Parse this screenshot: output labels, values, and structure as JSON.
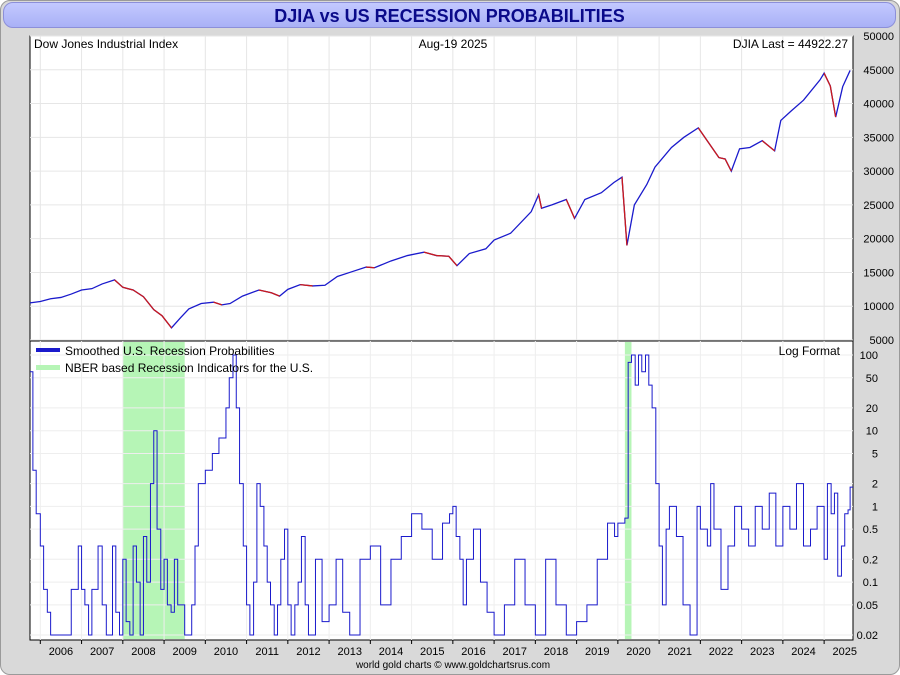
{
  "title": "DJIA vs US RECESSION PROBABILITIES",
  "header": {
    "left": "Dow Jones Industrial Index",
    "center": "Aug-19  2025",
    "right": "DJIA Last = 44922.27"
  },
  "lower_format_label": "Log Format",
  "credit": "world gold charts © www.goldchartsrus.com",
  "colors": {
    "djia_up": "#1a1acc",
    "djia_down": "#cc1a1a",
    "probability_line": "#1a1acc",
    "recession_band": "#b6f5b6",
    "title_text": "#0a0a8a"
  },
  "chart_data": [
    {
      "type": "line",
      "name": "upper-panel",
      "title": "Dow Jones Industrial Index",
      "ylabel": "",
      "ylim": [
        5000,
        50000
      ],
      "yticks": [
        5000,
        10000,
        15000,
        20000,
        25000,
        30000,
        35000,
        40000,
        45000,
        50000
      ],
      "xticks": [
        "2006",
        "2007",
        "2008",
        "2009",
        "2010",
        "2011",
        "2012",
        "2013",
        "2014",
        "2015",
        "2016",
        "2017",
        "2018",
        "2019",
        "2020",
        "2021",
        "2022",
        "2023",
        "2024",
        "2025"
      ],
      "xlim": [
        2005.75,
        2025.7
      ],
      "last_value": 44922.27,
      "series": [
        {
          "name": "",
          "x": [
            2005.75,
            2006.0,
            2006.25,
            2006.5,
            2006.75,
            2007.0,
            2007.25,
            2007.5,
            2007.8,
            2008.0,
            2008.25,
            2008.5,
            2008.75,
            2008.95,
            2009.18,
            2009.4,
            2009.6,
            2009.9,
            2010.2,
            2010.4,
            2010.6,
            2010.9,
            2011.3,
            2011.6,
            2011.8,
            2012.0,
            2012.3,
            2012.6,
            2012.9,
            2013.2,
            2013.5,
            2013.9,
            2014.1,
            2014.5,
            2014.9,
            2015.3,
            2015.6,
            2015.9,
            2016.1,
            2016.4,
            2016.8,
            2017.0,
            2017.4,
            2017.9,
            2018.08,
            2018.15,
            2018.4,
            2018.75,
            2018.95,
            2019.2,
            2019.6,
            2019.9,
            2020.1,
            2020.22,
            2020.4,
            2020.7,
            2020.9,
            2021.3,
            2021.6,
            2021.95,
            2022.2,
            2022.45,
            2022.6,
            2022.75,
            2022.95,
            2023.2,
            2023.5,
            2023.8,
            2023.95,
            2024.2,
            2024.5,
            2024.9,
            2025.0,
            2025.15,
            2025.28,
            2025.45,
            2025.63
          ],
          "values": [
            10500,
            10700,
            11100,
            11300,
            11800,
            12400,
            12600,
            13300,
            13900,
            12800,
            12400,
            11400,
            9500,
            8600,
            6800,
            8300,
            9600,
            10400,
            10600,
            10200,
            10400,
            11500,
            12400,
            12000,
            11500,
            12500,
            13200,
            13000,
            13100,
            14400,
            15000,
            15800,
            15700,
            16700,
            17500,
            18000,
            17500,
            17400,
            16000,
            17800,
            18500,
            19800,
            20800,
            24000,
            26500,
            24500,
            25000,
            25800,
            23000,
            25800,
            26800,
            28300,
            29100,
            19000,
            25000,
            28000,
            30600,
            33500,
            35000,
            36400,
            34200,
            32000,
            31800,
            30000,
            33300,
            33500,
            34500,
            33000,
            37500,
            38900,
            40500,
            43500,
            44500,
            42600,
            38000,
            42500,
            44900
          ]
        }
      ]
    },
    {
      "type": "line",
      "name": "lower-panel",
      "title": "",
      "ylabel": "",
      "yscale": "log",
      "ylim": [
        0.02,
        100
      ],
      "yticks": [
        0.02,
        0.05,
        0.1,
        0.2,
        0.5,
        1,
        2,
        5,
        10,
        20,
        50,
        100
      ],
      "xlim": [
        2005.75,
        2025.7
      ],
      "legend_position": "top-left",
      "recession_periods": [
        [
          2008.0,
          2009.5
        ],
        [
          2020.17,
          2020.33
        ]
      ],
      "series": [
        {
          "name": "Smoothed U.S. Recession Probabilities",
          "x": [
            2005.75,
            2005.82,
            2005.9,
            2006.0,
            2006.08,
            2006.17,
            2006.25,
            2006.5,
            2006.75,
            2006.92,
            2007.0,
            2007.08,
            2007.17,
            2007.25,
            2007.4,
            2007.5,
            2007.6,
            2007.75,
            2007.83,
            2007.92,
            2008.0,
            2008.08,
            2008.17,
            2008.25,
            2008.33,
            2008.42,
            2008.5,
            2008.58,
            2008.67,
            2008.75,
            2008.83,
            2008.92,
            2009.0,
            2009.08,
            2009.17,
            2009.25,
            2009.33,
            2009.5,
            2009.67,
            2009.75,
            2009.83,
            2010.0,
            2010.17,
            2010.33,
            2010.5,
            2010.58,
            2010.67,
            2010.75,
            2010.83,
            2010.92,
            2011.0,
            2011.08,
            2011.17,
            2011.25,
            2011.33,
            2011.42,
            2011.5,
            2011.58,
            2011.67,
            2011.75,
            2011.83,
            2011.92,
            2012.0,
            2012.08,
            2012.17,
            2012.25,
            2012.33,
            2012.42,
            2012.5,
            2012.67,
            2012.83,
            2013.0,
            2013.17,
            2013.33,
            2013.5,
            2013.75,
            2014.0,
            2014.25,
            2014.5,
            2014.75,
            2015.0,
            2015.25,
            2015.5,
            2015.75,
            2015.92,
            2016.0,
            2016.08,
            2016.17,
            2016.25,
            2016.33,
            2016.5,
            2016.67,
            2016.83,
            2017.0,
            2017.25,
            2017.5,
            2017.75,
            2018.0,
            2018.25,
            2018.5,
            2018.75,
            2019.0,
            2019.25,
            2019.5,
            2019.75,
            2019.92,
            2020.0,
            2020.08,
            2020.17,
            2020.25,
            2020.33,
            2020.42,
            2020.5,
            2020.58,
            2020.67,
            2020.75,
            2020.83,
            2020.92,
            2021.0,
            2021.08,
            2021.17,
            2021.25,
            2021.42,
            2021.58,
            2021.75,
            2021.92,
            2022.0,
            2022.17,
            2022.25,
            2022.33,
            2022.5,
            2022.67,
            2022.83,
            2023.0,
            2023.17,
            2023.33,
            2023.5,
            2023.67,
            2023.83,
            2024.0,
            2024.17,
            2024.33,
            2024.5,
            2024.67,
            2024.83,
            2025.0,
            2025.08,
            2025.17,
            2025.25,
            2025.33,
            2025.42,
            2025.5,
            2025.58,
            2025.63
          ],
          "values": [
            60,
            3,
            0.8,
            0.3,
            0.08,
            0.04,
            0.02,
            0.02,
            0.08,
            0.3,
            0.08,
            0.05,
            0.02,
            0.08,
            0.3,
            0.05,
            0.02,
            0.3,
            0.04,
            0.02,
            0.2,
            0.03,
            0.02,
            0.3,
            0.1,
            0.02,
            0.4,
            0.1,
            2,
            10,
            0.5,
            0.08,
            0.2,
            0.05,
            0.04,
            0.2,
            0.05,
            0.02,
            0.05,
            0.3,
            2,
            3,
            5,
            8,
            20,
            50,
            100,
            20,
            2,
            0.3,
            0.05,
            0.02,
            0.1,
            2,
            1,
            0.3,
            0.1,
            0.05,
            0.02,
            0.05,
            0.2,
            0.5,
            0.05,
            0.02,
            0.05,
            0.1,
            0.4,
            0.05,
            0.02,
            0.2,
            0.03,
            0.05,
            0.2,
            0.04,
            0.02,
            0.2,
            0.3,
            0.05,
            0.2,
            0.4,
            0.8,
            0.5,
            0.2,
            0.6,
            0.8,
            1,
            0.4,
            0.2,
            0.05,
            0.2,
            0.5,
            0.1,
            0.04,
            0.02,
            0.05,
            0.2,
            0.05,
            0.02,
            0.2,
            0.05,
            0.02,
            0.03,
            0.05,
            0.2,
            0.6,
            0.4,
            0.6,
            0.6,
            0.7,
            80,
            100,
            40,
            100,
            60,
            100,
            40,
            20,
            2,
            0.3,
            0.05,
            0.5,
            1,
            0.4,
            0.05,
            0.02,
            1,
            0.5,
            0.3,
            2,
            0.5,
            0.08,
            0.3,
            1,
            0.5,
            0.3,
            1,
            0.5,
            1.5,
            0.3,
            1,
            0.5,
            2,
            0.3,
            0.5,
            1,
            0.2,
            2,
            0.8,
            1.5,
            0.12,
            0.3,
            0.8,
            0.9,
            1.8
          ]
        },
        {
          "name": "NBER based Recession Indicators for the U.S.",
          "x": [],
          "values": []
        }
      ]
    }
  ]
}
